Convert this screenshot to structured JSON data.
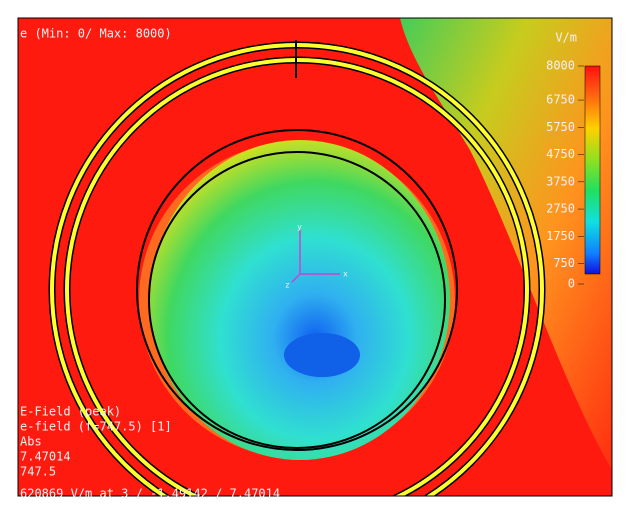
{
  "plot": {
    "title": "e (Min: 0/ Max: 8000)",
    "colorbar": {
      "unit": "V/m",
      "lim": [
        0,
        8000
      ],
      "ticks": [
        8000,
        6750,
        5750,
        4750,
        3750,
        2750,
        1750,
        750,
        0
      ]
    },
    "axes": {
      "x": "x",
      "y": "y",
      "z": "z"
    },
    "info": [
      "E-Field (peak)",
      "e-field (f=747.5) [1]",
      "Abs",
      "7.47014",
      "747.5",
      "620869 V/m at 3 / -1.49142 / 7.47014"
    ]
  }
}
